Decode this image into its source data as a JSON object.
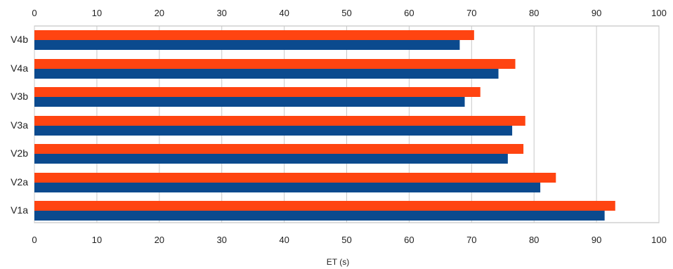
{
  "chart_data": {
    "type": "bar",
    "orientation": "horizontal",
    "categories": [
      "V4b",
      "V4a",
      "V3b",
      "V3a",
      "V2b",
      "V2a",
      "V1a"
    ],
    "series": [
      {
        "values": [
          70.4,
          77.0,
          71.4,
          78.6,
          78.3,
          83.5,
          93.0
        ],
        "color": "#ff4411"
      },
      {
        "values": [
          68.1,
          74.3,
          68.9,
          76.5,
          75.8,
          81.0,
          91.3
        ],
        "color": "#0b4a8e"
      }
    ],
    "xlabel": "ET (s)",
    "xlim": [
      0,
      100
    ],
    "xticks": [
      "0",
      "10",
      "20",
      "30",
      "40",
      "50",
      "60",
      "70",
      "80",
      "90",
      "100"
    ],
    "top_axis_ticks": true,
    "grid": "vertical"
  }
}
